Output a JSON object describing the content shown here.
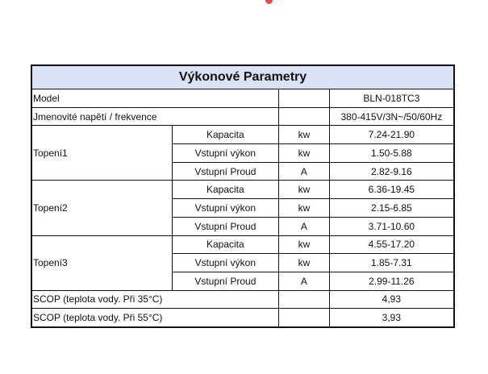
{
  "title": "Výkonové Parametry",
  "model": {
    "label": "Model",
    "unit": "",
    "value": "BLN-018TC3"
  },
  "voltage": {
    "label": "Jmenovité napětí / frekvence",
    "unit": "",
    "value": "380-415V/3N~/50/60Hz"
  },
  "groups": [
    {
      "label": "Topení1",
      "rows": [
        {
          "param": "Kapacita",
          "unit": "kw",
          "value": "7.24-21.90"
        },
        {
          "param": "Vstupní výkon",
          "unit": "kw",
          "value": "1.50-5.88"
        },
        {
          "param": "Vstupní Proud",
          "unit": "A",
          "value": "2.82-9.16"
        }
      ]
    },
    {
      "label": "Topení2",
      "rows": [
        {
          "param": "Kapacita",
          "unit": "kw",
          "value": "6.36-19.45"
        },
        {
          "param": "Vstupní výkon",
          "unit": "kw",
          "value": "2.15-6.85"
        },
        {
          "param": "Vstupní Proud",
          "unit": "A",
          "value": "3.71-10.60"
        }
      ]
    },
    {
      "label": "Topení3",
      "rows": [
        {
          "param": "Kapacita",
          "unit": "kw",
          "value": "4.55-17.20"
        },
        {
          "param": "Vstupní výkon",
          "unit": "kw",
          "value": "1.85-7.31"
        },
        {
          "param": "Vstupní Proud",
          "unit": "A",
          "value": "2.99-11.26"
        }
      ]
    }
  ],
  "scop": [
    {
      "label": "SCOP (teplota vody. Při 35°C)",
      "unit": "",
      "value": "4,93"
    },
    {
      "label": "SCOP (teplota vody. Při 55°C)",
      "unit": "",
      "value": "3,93"
    }
  ],
  "colors": {
    "header_bg": "#dae3f3",
    "dot": "#e8474c"
  }
}
